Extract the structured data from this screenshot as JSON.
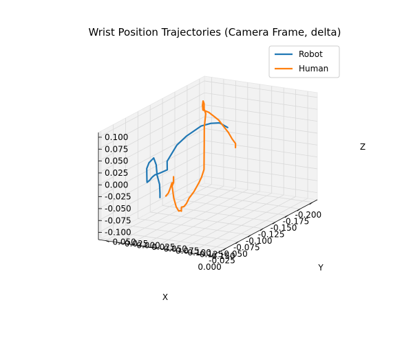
{
  "chart_data": {
    "type": "line",
    "projection": "3d",
    "title": "Wrist Position Trajectories (Camera Frame, delta)",
    "xlabel": "X",
    "ylabel": "Y",
    "zlabel": "Z",
    "xlim": [
      -0.21,
      0.005
    ],
    "ylim": [
      -0.17,
      0.065
    ],
    "zlim": [
      -0.115,
      0.11
    ],
    "xticks": [
      "-0.200",
      "-0.175",
      "-0.150",
      "-0.125",
      "-0.100",
      "-0.075",
      "-0.050",
      "-0.025",
      "0.000"
    ],
    "yticks": [
      "-0.150",
      "-0.125",
      "-0.100",
      "-0.075",
      "-0.050",
      "-0.025",
      "0.000",
      "0.025",
      "0.050"
    ],
    "zticks": [
      "-0.100",
      "-0.075",
      "-0.050",
      "-0.025",
      "0.000",
      "0.025",
      "0.050",
      "0.075",
      "0.100"
    ],
    "grid": true,
    "legend_position": "top-right",
    "series": [
      {
        "name": "Robot",
        "color": "#1f77b4",
        "points": [
          [
            -0.145,
            -0.05,
            0.055
          ],
          [
            -0.148,
            -0.03,
            0.06
          ],
          [
            -0.15,
            -0.01,
            0.055
          ],
          [
            -0.145,
            0.005,
            0.05
          ],
          [
            -0.13,
            0.02,
            0.035
          ],
          [
            -0.12,
            0.03,
            0.02
          ],
          [
            -0.115,
            0.035,
            0.005
          ],
          [
            -0.11,
            0.04,
            -0.01
          ],
          [
            -0.115,
            0.045,
            -0.025
          ],
          [
            -0.12,
            0.05,
            -0.035
          ],
          [
            -0.1,
            0.045,
            -0.03
          ],
          [
            -0.085,
            0.04,
            -0.025
          ],
          [
            -0.07,
            0.03,
            -0.02
          ],
          [
            -0.06,
            0.025,
            -0.02
          ],
          [
            -0.045,
            0.015,
            -0.015
          ],
          [
            -0.035,
            0.005,
            -0.005
          ],
          [
            -0.025,
            -0.005,
            0.015
          ],
          [
            -0.015,
            -0.015,
            0.035
          ],
          [
            -0.005,
            -0.03,
            0.055
          ],
          [
            0.0,
            -0.045,
            0.07
          ],
          [
            -0.002,
            -0.048,
            0.055
          ],
          [
            0.0,
            -0.052,
            0.035
          ],
          [
            -0.002,
            -0.055,
            0.015
          ],
          [
            0.0,
            -0.058,
            -0.002
          ],
          [
            0.002,
            -0.06,
            -0.01
          ]
        ]
      },
      {
        "name": "Human",
        "color": "#ff7f0e",
        "points": [
          [
            -0.008,
            -0.062,
            -0.012
          ],
          [
            -0.015,
            -0.06,
            -0.01
          ],
          [
            -0.02,
            -0.058,
            -0.005
          ],
          [
            -0.025,
            -0.055,
            -0.002
          ],
          [
            -0.03,
            -0.052,
            0.002
          ],
          [
            -0.035,
            -0.05,
            0.0
          ],
          [
            -0.04,
            -0.045,
            -0.005
          ],
          [
            -0.045,
            -0.04,
            0.005
          ],
          [
            -0.05,
            -0.035,
            -0.01
          ],
          [
            -0.052,
            -0.03,
            -0.02
          ],
          [
            -0.06,
            -0.025,
            -0.05
          ],
          [
            -0.07,
            -0.02,
            -0.075
          ],
          [
            -0.08,
            -0.015,
            -0.09
          ],
          [
            -0.09,
            -0.01,
            -0.095
          ],
          [
            -0.095,
            -0.005,
            -0.1
          ],
          [
            -0.1,
            0.0,
            -0.095
          ],
          [
            -0.11,
            0.005,
            -0.1
          ],
          [
            -0.12,
            0.01,
            -0.1
          ],
          [
            -0.13,
            0.015,
            -0.095
          ],
          [
            -0.145,
            0.02,
            -0.09
          ],
          [
            -0.16,
            0.025,
            -0.08
          ],
          [
            -0.17,
            0.03,
            -0.075
          ],
          [
            -0.18,
            0.035,
            -0.065
          ],
          [
            -0.185,
            0.04,
            -0.05
          ],
          [
            -0.19,
            0.045,
            -0.035
          ],
          [
            -0.195,
            0.05,
            -0.025
          ],
          [
            -0.2,
            0.055,
            0.01
          ],
          [
            -0.198,
            0.05,
            0.04
          ],
          [
            -0.19,
            0.045,
            0.055
          ],
          [
            -0.185,
            0.04,
            0.07
          ],
          [
            -0.178,
            0.035,
            0.08
          ],
          [
            -0.172,
            0.03,
            0.075
          ],
          [
            -0.168,
            0.025,
            0.068
          ],
          [
            -0.175,
            0.02,
            0.06
          ],
          [
            -0.18,
            0.015,
            0.05
          ],
          [
            -0.185,
            0.01,
            0.04
          ],
          [
            -0.19,
            0.005,
            0.025
          ],
          [
            -0.195,
            0.0,
            0.01
          ],
          [
            -0.198,
            -0.005,
            -0.005
          ],
          [
            -0.2,
            -0.01,
            -0.015
          ],
          [
            -0.195,
            -0.015,
            -0.02
          ]
        ]
      }
    ]
  }
}
